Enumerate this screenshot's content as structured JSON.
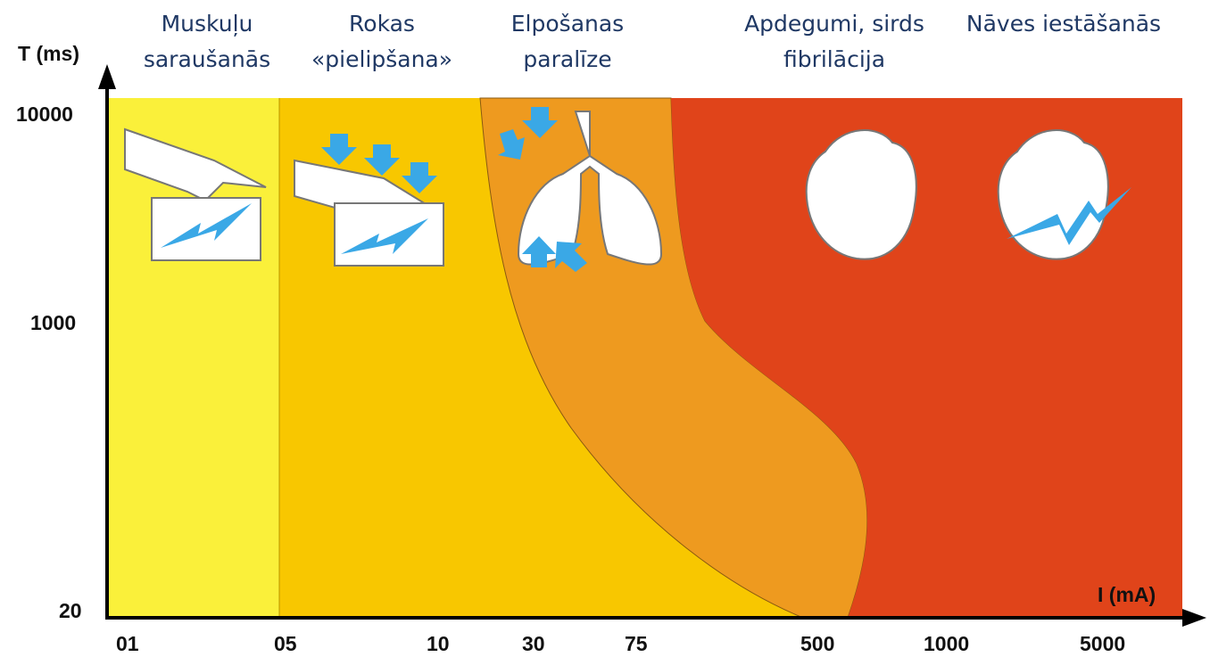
{
  "y_axis": {
    "label": "T (ms)",
    "ticks": [
      "10000",
      "1000",
      "20"
    ]
  },
  "x_axis": {
    "label": "I (mA)",
    "ticks": [
      "01",
      "05",
      "10",
      "30",
      "75",
      "500",
      "1000",
      "5000"
    ]
  },
  "zones": [
    {
      "lines": [
        "Muskuļu",
        "saraušanās"
      ]
    },
    {
      "lines": [
        "Rokas",
        "«pielipšana»"
      ]
    },
    {
      "lines": [
        "Elpošanas",
        "paralīze"
      ]
    },
    {
      "lines": [
        "Apdegumi, sirds",
        "fibrilācija"
      ]
    },
    {
      "lines": [
        "Nāves iestāšanās"
      ]
    }
  ]
}
